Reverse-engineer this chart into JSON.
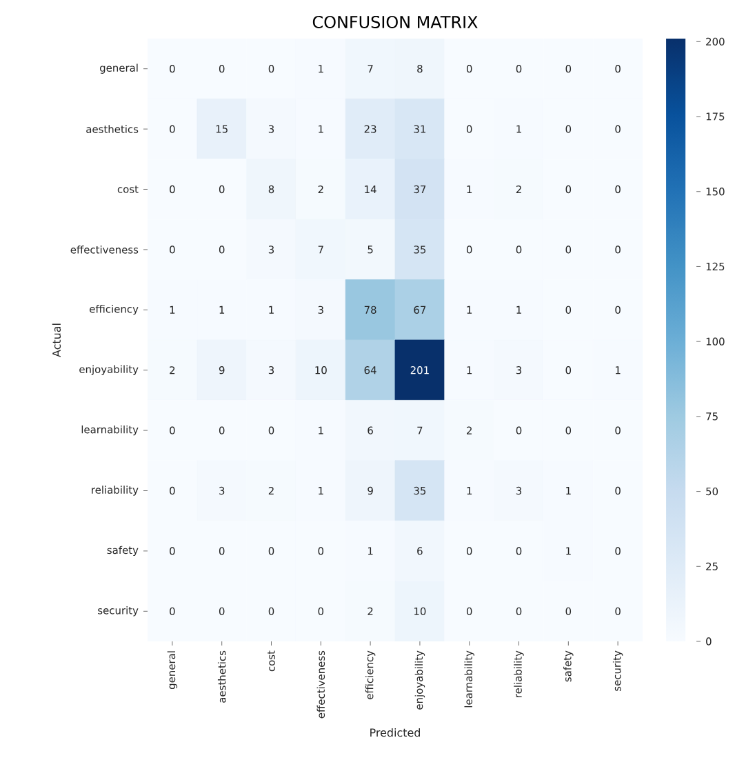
{
  "chart_data": {
    "type": "heatmap",
    "title": "CONFUSION MATRIX",
    "xlabel": "Predicted",
    "ylabel": "Actual",
    "categories": [
      "general",
      "aesthetics",
      "cost",
      "effectiveness",
      "efficiency",
      "enjoyability",
      "learnability",
      "reliability",
      "safety",
      "security"
    ],
    "y_categories": [
      "general",
      "aesthetics",
      "cost",
      "effectiveness",
      "efficiency",
      "enjoyability",
      "learnability",
      "reliability",
      "safety",
      "security"
    ],
    "cells": [
      [
        0,
        0,
        0,
        1,
        7,
        8,
        0,
        0,
        0,
        0
      ],
      [
        0,
        15,
        3,
        1,
        23,
        31,
        0,
        1,
        0,
        0
      ],
      [
        0,
        0,
        8,
        2,
        14,
        37,
        1,
        2,
        0,
        0
      ],
      [
        0,
        0,
        3,
        7,
        5,
        35,
        0,
        0,
        0,
        0
      ],
      [
        1,
        1,
        1,
        3,
        78,
        67,
        1,
        1,
        0,
        0
      ],
      [
        2,
        9,
        3,
        10,
        64,
        201,
        1,
        3,
        0,
        1
      ],
      [
        0,
        0,
        0,
        1,
        6,
        7,
        2,
        0,
        0,
        0
      ],
      [
        0,
        3,
        2,
        1,
        9,
        35,
        1,
        3,
        1,
        0
      ],
      [
        0,
        0,
        0,
        0,
        1,
        6,
        0,
        0,
        1,
        0
      ],
      [
        0,
        0,
        0,
        0,
        2,
        10,
        0,
        0,
        0,
        0
      ]
    ],
    "data_labels": true,
    "clim": [
      0,
      201
    ],
    "cticks": [
      0,
      25,
      50,
      75,
      100,
      125,
      150,
      175,
      200
    ]
  }
}
